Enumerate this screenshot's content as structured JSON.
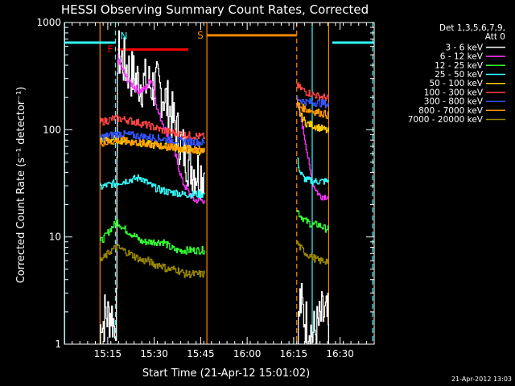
{
  "chart_data": {
    "type": "line",
    "title": "HESSI Observing Summary Count Rates, Corrected",
    "xlabel": "Start Time (21-Apr-12 15:01:02)",
    "ylabel": "Corrected Count Rate (s⁻¹ detector⁻¹)",
    "y_scale": "log",
    "ylim": [
      1,
      1000
    ],
    "xlim_minutes": [
      0,
      100
    ],
    "x_ticks": [
      {
        "t": 14,
        "label": "15:15"
      },
      {
        "t": 29,
        "label": "15:30"
      },
      {
        "t": 44,
        "label": "15:45"
      },
      {
        "t": 59,
        "label": "16:00"
      },
      {
        "t": 74,
        "label": "16:15"
      },
      {
        "t": 89,
        "label": "16:30"
      }
    ],
    "y_ticks": [
      {
        "v": 1,
        "label": "1"
      },
      {
        "v": 10,
        "label": "10"
      },
      {
        "v": 100,
        "label": "100"
      },
      {
        "v": 1000,
        "label": "1000"
      }
    ],
    "legend_header": [
      "Det 1,3,5,6,7,9,",
      "Att 0"
    ],
    "legend_position": "right",
    "footer_date": "21-Apr-2012 13:03",
    "series": [
      {
        "name": "3 - 6 keV",
        "color": "#ffffff",
        "segments": [
          [
            [
              11.5,
              1
            ],
            [
              11.8,
              2
            ],
            [
              12.3,
              1.5
            ],
            [
              13.2,
              2
            ],
            [
              14,
              1.8
            ],
            [
              15,
              2
            ],
            [
              16,
              1.5
            ],
            [
              16.8,
              2
            ],
            [
              17.1,
              520
            ],
            [
              18,
              470
            ],
            [
              20,
              380
            ],
            [
              22,
              320
            ],
            [
              24,
              280
            ],
            [
              26,
              270
            ],
            [
              28,
              260
            ],
            [
              30,
              250
            ],
            [
              32,
              210
            ],
            [
              34,
              150
            ],
            [
              36,
              100
            ],
            [
              38,
              68
            ],
            [
              40,
              50
            ],
            [
              42,
              42
            ],
            [
              44,
              40
            ],
            [
              45.2,
              40
            ]
          ],
          [
            [
              75,
              1
            ],
            [
              75.5,
              1.5
            ],
            [
              76,
              2.5
            ],
            [
              77,
              2
            ],
            [
              78,
              1.6
            ],
            [
              79,
              1.5
            ],
            [
              80,
              1.2
            ],
            [
              82,
              1.5
            ],
            [
              83,
              1.8
            ],
            [
              84,
              1.8
            ],
            [
              85,
              1.7
            ],
            [
              85.3,
              1
            ]
          ]
        ]
      },
      {
        "name": "6 - 12 keV",
        "color": "#ff33ff",
        "segments": [
          [
            [
              17.1,
              480
            ],
            [
              18,
              400
            ],
            [
              20,
              300
            ],
            [
              22,
              260
            ],
            [
              24,
              230
            ],
            [
              26,
              240
            ],
            [
              28,
              300
            ],
            [
              29,
              230
            ],
            [
              30,
              150
            ],
            [
              32,
              110
            ],
            [
              34,
              80
            ],
            [
              36,
              55
            ],
            [
              38,
              33
            ],
            [
              40,
              26
            ],
            [
              42,
              22
            ],
            [
              44,
              22
            ],
            [
              45.2,
              22
            ]
          ],
          [
            [
              75,
              170
            ],
            [
              76,
              145
            ],
            [
              77,
              100
            ],
            [
              78,
              70
            ],
            [
              79,
              45
            ],
            [
              80,
              32
            ],
            [
              81,
              28
            ],
            [
              82,
              25
            ],
            [
              83,
              24
            ],
            [
              84,
              24
            ],
            [
              85.3,
              24
            ]
          ]
        ]
      },
      {
        "name": "12 - 25 keV",
        "color": "#33ff33",
        "segments": [
          [
            [
              11.5,
              9
            ],
            [
              13,
              10
            ],
            [
              15,
              12
            ],
            [
              17,
              14
            ],
            [
              19,
              12
            ],
            [
              21,
              11
            ],
            [
              23,
              10
            ],
            [
              25,
              9
            ],
            [
              28,
              9
            ],
            [
              30,
              9
            ],
            [
              32,
              9
            ],
            [
              34,
              8
            ],
            [
              36,
              7.5
            ],
            [
              38,
              7.5
            ],
            [
              40,
              7.5
            ],
            [
              42,
              7.5
            ],
            [
              45.2,
              7.5
            ]
          ],
          [
            [
              75,
              18
            ],
            [
              76,
              16
            ],
            [
              77,
              15
            ],
            [
              78,
              14
            ],
            [
              80,
              13
            ],
            [
              82,
              13
            ],
            [
              84,
              12
            ],
            [
              85.3,
              12
            ]
          ]
        ]
      },
      {
        "name": "25 - 50 keV",
        "color": "#33ffff",
        "segments": [
          [
            [
              11.5,
              29
            ],
            [
              13,
              30
            ],
            [
              15,
              31
            ],
            [
              17,
              32
            ],
            [
              19,
              33
            ],
            [
              21,
              34
            ],
            [
              23,
              35
            ],
            [
              24.5,
              36
            ],
            [
              26,
              33
            ],
            [
              28,
              30
            ],
            [
              30,
              28
            ],
            [
              32,
              27
            ],
            [
              34,
              26
            ],
            [
              36,
              26
            ],
            [
              38,
              25
            ],
            [
              40,
              25
            ],
            [
              42,
              25
            ],
            [
              45.2,
              25
            ]
          ],
          [
            [
              75,
              55
            ],
            [
              76,
              40
            ],
            [
              77,
              36
            ],
            [
              78,
              34
            ],
            [
              80,
              33
            ],
            [
              82,
              33
            ],
            [
              84,
              33
            ],
            [
              85.3,
              33
            ]
          ]
        ]
      },
      {
        "name": "50 - 100 keV",
        "color": "#ffcc00",
        "segments": [
          [
            [
              11.5,
              80
            ],
            [
              14,
              80
            ],
            [
              16,
              82
            ],
            [
              18,
              80
            ],
            [
              20,
              78
            ],
            [
              23,
              76
            ],
            [
              26,
              74
            ],
            [
              29,
              72
            ],
            [
              32,
              70
            ],
            [
              35,
              68
            ],
            [
              38,
              66
            ],
            [
              41,
              64
            ],
            [
              45.2,
              62
            ]
          ],
          [
            [
              75,
              170
            ],
            [
              76,
              140
            ],
            [
              77,
              125
            ],
            [
              78,
              115
            ],
            [
              80,
              110
            ],
            [
              82,
              105
            ],
            [
              84,
              100
            ],
            [
              85.3,
              95
            ]
          ]
        ]
      },
      {
        "name": "100 - 300 keV",
        "color": "#ff4444",
        "segments": [
          [
            [
              11.5,
              118
            ],
            [
              14,
              122
            ],
            [
              16,
              128
            ],
            [
              18,
              126
            ],
            [
              20,
              124
            ],
            [
              23,
              118
            ],
            [
              26,
              112
            ],
            [
              29,
              105
            ],
            [
              32,
              98
            ],
            [
              35,
              94
            ],
            [
              38,
              90
            ],
            [
              41,
              88
            ],
            [
              45.2,
              86
            ]
          ],
          [
            [
              75,
              260
            ],
            [
              76,
              245
            ],
            [
              77,
              235
            ],
            [
              78,
              225
            ],
            [
              80,
              215
            ],
            [
              82,
              205
            ],
            [
              84,
              200
            ],
            [
              85.3,
              195
            ]
          ]
        ]
      },
      {
        "name": "300 - 800 keV",
        "color": "#3355ff",
        "segments": [
          [
            [
              11.5,
              85
            ],
            [
              14,
              88
            ],
            [
              16,
              90
            ],
            [
              18,
              92
            ],
            [
              20,
              90
            ],
            [
              23,
              88
            ],
            [
              26,
              86
            ],
            [
              29,
              84
            ],
            [
              32,
              82
            ],
            [
              35,
              80
            ],
            [
              38,
              78
            ],
            [
              41,
              77
            ],
            [
              45.2,
              76
            ]
          ],
          [
            [
              75,
              200
            ],
            [
              76,
              190
            ],
            [
              77,
              185
            ],
            [
              78,
              182
            ],
            [
              80,
              180
            ],
            [
              82,
              178
            ],
            [
              84,
              175
            ],
            [
              85.3,
              170
            ]
          ]
        ]
      },
      {
        "name": "800 - 7000 keV",
        "color": "#ff9900",
        "segments": [
          [
            [
              11.5,
              75
            ],
            [
              14,
              76
            ],
            [
              16,
              78
            ],
            [
              18,
              80
            ],
            [
              20,
              78
            ],
            [
              23,
              76
            ],
            [
              26,
              74
            ],
            [
              29,
              72
            ],
            [
              32,
              70
            ],
            [
              35,
              68
            ],
            [
              38,
              67
            ],
            [
              41,
              66
            ],
            [
              45.2,
              65
            ]
          ],
          [
            [
              75,
              180
            ],
            [
              76,
              165
            ],
            [
              77,
              160
            ],
            [
              78,
              155
            ],
            [
              80,
              150
            ],
            [
              82,
              145
            ],
            [
              84,
              140
            ],
            [
              85.3,
              135
            ]
          ]
        ]
      },
      {
        "name": "7000 - 20000 keV",
        "color": "#998800",
        "segments": [
          [
            [
              11.5,
              6
            ],
            [
              13,
              6.5
            ],
            [
              15,
              7.5
            ],
            [
              17,
              8
            ],
            [
              19,
              7.5
            ],
            [
              21,
              7
            ],
            [
              23,
              6.5
            ],
            [
              25,
              6
            ],
            [
              27,
              6
            ],
            [
              29,
              5.5
            ],
            [
              31,
              5.5
            ],
            [
              33,
              5
            ],
            [
              36,
              5
            ],
            [
              39,
              4.5
            ],
            [
              42,
              4.5
            ],
            [
              45.2,
              4.5
            ]
          ],
          [
            [
              75,
              9
            ],
            [
              76,
              8
            ],
            [
              77,
              7.5
            ],
            [
              78,
              7
            ],
            [
              80,
              6.5
            ],
            [
              82,
              6
            ],
            [
              84,
              6
            ],
            [
              85.3,
              6
            ]
          ]
        ]
      }
    ],
    "annotations": {
      "bars": [
        {
          "label": "",
          "color": "#33ffff",
          "y": 650,
          "x_ranges": [
            [
              0,
              16.5
            ],
            [
              86.5,
              100
            ]
          ]
        },
        {
          "label": "F",
          "color": "#ff0000",
          "y": 560,
          "x_ranges": [
            [
              17,
              40
            ]
          ]
        },
        {
          "label": "S",
          "color": "#ff8800",
          "y": 760,
          "x_ranges": [
            [
              46,
              75
            ]
          ]
        }
      ],
      "vlines": [
        {
          "t": 0.1,
          "color": "#33ffff",
          "dash": false
        },
        {
          "t": 11.5,
          "color": "#ff8800",
          "dash": false
        },
        {
          "t": 16.5,
          "color": "#33ffff",
          "dash": true,
          "label": "N"
        },
        {
          "t": 46,
          "color": "#ff8800",
          "dash": false
        },
        {
          "t": 75,
          "color": "#ff8800",
          "dash": true
        },
        {
          "t": 80,
          "color": "#33ffff",
          "dash": false
        },
        {
          "t": 85.3,
          "color": "#ff8800",
          "dash": false
        },
        {
          "t": 99.5,
          "color": "#33ffff",
          "dash": true
        }
      ]
    }
  }
}
